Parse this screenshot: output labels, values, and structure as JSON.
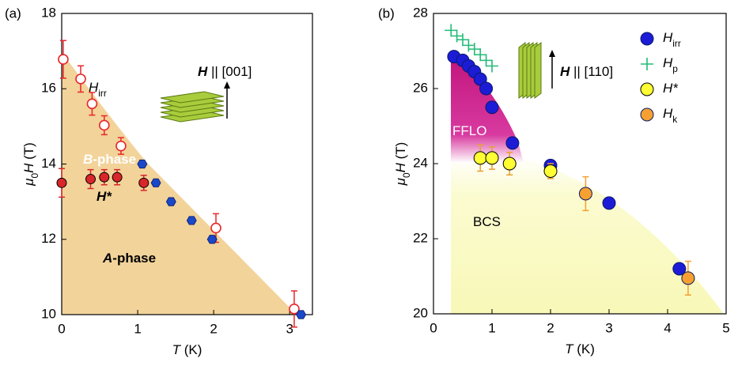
{
  "chart_data": [
    {
      "type": "scatter",
      "panel_label": "(a)",
      "xlabel": [
        {
          "t": "T",
          "style": "italic"
        },
        {
          "t": " (K)"
        }
      ],
      "ylabel": [
        {
          "t": "μ",
          "style": "italic"
        },
        {
          "t": "0",
          "style": "sub"
        },
        {
          "t": "H",
          "style": "italic"
        },
        {
          "t": " (T)"
        }
      ],
      "xlim": [
        0,
        3.3
      ],
      "ylim": [
        10,
        18
      ],
      "xticks": [
        0,
        1,
        2,
        3
      ],
      "yticks": [
        10,
        12,
        14,
        16,
        18
      ],
      "series": [
        {
          "marker": "circle-open",
          "color": "#e8262a",
          "x": [
            0.02,
            0.25,
            0.4,
            0.56,
            0.78,
            2.03,
            3.06
          ],
          "values": [
            16.78,
            16.26,
            15.6,
            15.03,
            14.48,
            12.3,
            10.15
          ],
          "errors": [
            0.5,
            0.35,
            0.3,
            0.25,
            0.22,
            0.38,
            0.48
          ]
        },
        {
          "marker": "hexagon",
          "color": "#1a48c8",
          "x": [
            1.06,
            1.24,
            1.44,
            1.71,
            1.98,
            3.15
          ],
          "values": [
            14.0,
            13.5,
            13.0,
            12.5,
            12.0,
            10.0
          ]
        },
        {
          "marker": "circle",
          "color": "#d8262a",
          "x": [
            0,
            0.38,
            0.56,
            0.73,
            1.08
          ],
          "values": [
            13.5,
            13.6,
            13.65,
            13.65,
            13.5
          ],
          "errors": [
            0.38,
            0.25,
            0.2,
            0.2,
            0.2
          ]
        }
      ],
      "annotations": [
        {
          "color": "#000000",
          "parts": [
            {
              "t": "H",
              "style": "italic"
            },
            {
              "t": "irr",
              "style": "sub"
            }
          ]
        },
        {
          "color": "#ffffff",
          "parts": [
            {
              "t": "B",
              "style": "bold-italic"
            },
            {
              "t": "-phase",
              "style": "bold"
            }
          ]
        },
        {
          "color": "#000000",
          "parts": [
            {
              "t": "H*",
              "style": "bold-italic"
            }
          ]
        },
        {
          "color": "#000000",
          "parts": [
            {
              "t": "A",
              "style": "bold-italic"
            },
            {
              "t": "-phase",
              "style": "bold"
            }
          ]
        },
        {
          "color": "#000000",
          "parts": [
            {
              "t": "H",
              "style": "bold-italic"
            },
            {
              "t": " || [001]"
            }
          ]
        }
      ]
    },
    {
      "type": "scatter",
      "panel_label": "(b)",
      "xlabel": [
        {
          "t": "T",
          "style": "italic"
        },
        {
          "t": " (K)"
        }
      ],
      "ylabel": [
        {
          "t": "μ",
          "style": "italic"
        },
        {
          "t": "0",
          "style": "sub"
        },
        {
          "t": "H",
          "style": "italic"
        },
        {
          "t": " (T)"
        }
      ],
      "xlim": [
        0,
        5
      ],
      "ylim": [
        20,
        28
      ],
      "xticks": [
        0,
        1,
        2,
        3,
        4,
        5
      ],
      "yticks": [
        20,
        22,
        24,
        26,
        28
      ],
      "legend": "upper right",
      "series": [
        {
          "name": "H",
          "name_sub": "irr",
          "marker": "circle",
          "color": "#1c1cd6",
          "x": [
            0.35,
            0.5,
            0.6,
            0.7,
            0.8,
            0.9,
            1.0,
            1.35,
            2.0,
            3.0,
            4.2
          ],
          "values": [
            26.85,
            26.75,
            26.6,
            26.45,
            26.25,
            26.0,
            25.5,
            24.55,
            23.95,
            22.95,
            21.2
          ]
        },
        {
          "name": "H",
          "name_sub": "p",
          "marker": "plus",
          "color": "#22bb77",
          "x": [
            0.3,
            0.4,
            0.5,
            0.6,
            0.7,
            0.8,
            0.9,
            1.0
          ],
          "values": [
            27.55,
            27.4,
            27.3,
            27.15,
            27.05,
            26.9,
            26.75,
            26.6
          ]
        },
        {
          "name": "H*",
          "marker": "circle",
          "color": "#ffff33",
          "error_color": "#e8a030",
          "x": [
            0.8,
            1.0,
            1.3,
            2.0
          ],
          "values": [
            24.15,
            24.15,
            24.0,
            23.8
          ],
          "errors": [
            0.35,
            0.3,
            0.3,
            0.2
          ]
        },
        {
          "name": "H",
          "name_sub": "k",
          "marker": "circle",
          "color": "#f5a030",
          "x": [
            2.6,
            4.35
          ],
          "values": [
            23.2,
            20.95
          ],
          "errors": [
            0.45,
            0.45
          ]
        }
      ],
      "annotations": [
        {
          "color": "#ffffff",
          "parts": [
            {
              "t": "FFLO"
            }
          ]
        },
        {
          "color": "#000000",
          "parts": [
            {
              "t": "BCS"
            }
          ]
        },
        {
          "color": "#000000",
          "parts": [
            {
              "t": "H",
              "style": "bold-italic"
            },
            {
              "t": " || [110]"
            }
          ]
        }
      ]
    }
  ]
}
